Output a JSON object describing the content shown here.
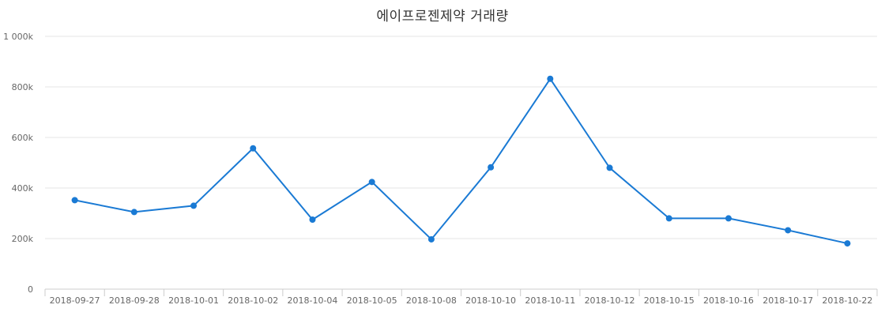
{
  "chart_data": {
    "type": "line",
    "title": "에이프로젠제약 거래량",
    "xlabel": "",
    "ylabel": "",
    "categories": [
      "2018-09-27",
      "2018-09-28",
      "2018-10-01",
      "2018-10-02",
      "2018-10-04",
      "2018-10-05",
      "2018-10-08",
      "2018-10-10",
      "2018-10-11",
      "2018-10-12",
      "2018-10-15",
      "2018-10-16",
      "2018-10-17",
      "2018-10-22"
    ],
    "series": [
      {
        "values": [
          352000,
          305000,
          330000,
          557000,
          275000,
          424000,
          197000,
          482000,
          832000,
          480000,
          280000,
          280000,
          233000,
          181000
        ]
      }
    ],
    "ylim": [
      0,
      1000000
    ],
    "y_ticks": [
      0,
      200000,
      400000,
      600000,
      800000,
      1000000
    ],
    "y_tick_labels": [
      "0",
      "200k",
      "400k",
      "600k",
      "800k",
      "1 000k"
    ],
    "grid": true,
    "legend": "none",
    "colors": {
      "series": "#1a7ad4"
    }
  }
}
